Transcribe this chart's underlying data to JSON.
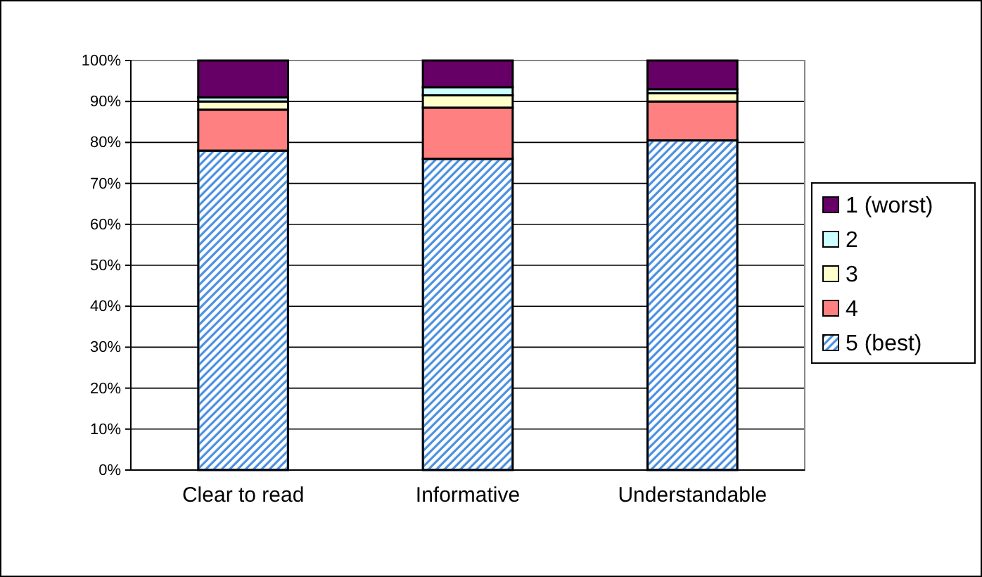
{
  "chart_data": {
    "type": "bar",
    "stacked": true,
    "categories": [
      "Clear to read",
      "Informative",
      "Understandable"
    ],
    "series": [
      {
        "name": "5 (best)",
        "color": "#4a8fe0",
        "values": [
          78,
          76,
          80.5
        ]
      },
      {
        "name": "4",
        "color": "#ff8080",
        "values": [
          10,
          12.5,
          9.5
        ]
      },
      {
        "name": "3",
        "color": "#ffffcc",
        "values": [
          2,
          3,
          2
        ]
      },
      {
        "name": "2",
        "color": "#ccffff",
        "values": [
          1,
          2,
          1
        ]
      },
      {
        "name": "1 (worst)",
        "color": "#660066",
        "values": [
          9,
          6.5,
          7
        ]
      }
    ],
    "ylim": [
      0,
      100
    ],
    "yticks": [
      {
        "value": 0,
        "label": "0%"
      },
      {
        "value": 10,
        "label": "10%"
      },
      {
        "value": 20,
        "label": "20%"
      },
      {
        "value": 30,
        "label": "30%"
      },
      {
        "value": 40,
        "label": "40%"
      },
      {
        "value": 50,
        "label": "50%"
      },
      {
        "value": 60,
        "label": "60%"
      },
      {
        "value": 70,
        "label": "70%"
      },
      {
        "value": 80,
        "label": "80%"
      },
      {
        "value": 90,
        "label": "90%"
      },
      {
        "value": 100,
        "label": "100%"
      }
    ],
    "grid": "y",
    "legend": "right"
  }
}
